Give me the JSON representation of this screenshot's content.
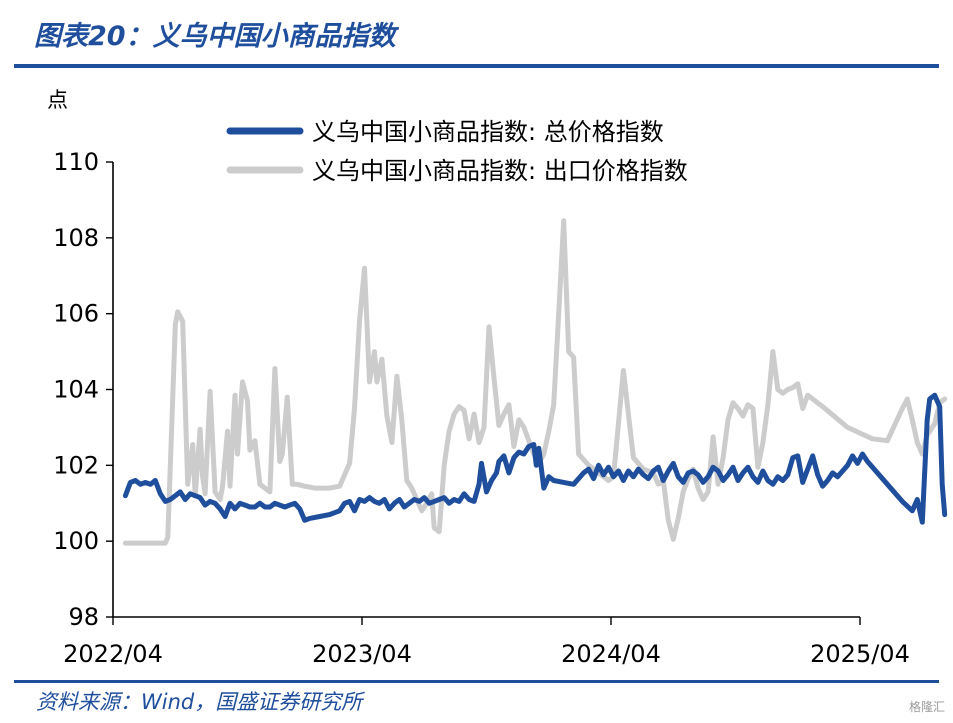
{
  "header": {
    "title": "图表20：义乌中国小商品指数"
  },
  "footer": {
    "source": "资料来源：Wind，国盛证券研究所",
    "watermark": "格隆汇"
  },
  "chart_data": {
    "type": "line",
    "ylabel": "点",
    "ylim": [
      98,
      110
    ],
    "yticks": [
      "98",
      "100",
      "102",
      "104",
      "106",
      "108",
      "110"
    ],
    "xlim": [
      "2022-04",
      "2025-04"
    ],
    "xticks": [
      "2022/04",
      "2023/04",
      "2024/04",
      "2025/04"
    ],
    "legend_position": "top",
    "grid": false,
    "series": [
      {
        "name": "义乌中国小商品指数: 总价格指数",
        "color": "#1f4e9c",
        "points": [
          [
            2022.3,
            101.2
          ],
          [
            2022.32,
            101.55
          ],
          [
            2022.34,
            101.6
          ],
          [
            2022.36,
            101.5
          ],
          [
            2022.38,
            101.55
          ],
          [
            2022.4,
            101.5
          ],
          [
            2022.42,
            101.6
          ],
          [
            2022.44,
            101.25
          ],
          [
            2022.46,
            101.05
          ],
          [
            2022.48,
            101.1
          ],
          [
            2022.5,
            101.2
          ],
          [
            2022.52,
            101.3
          ],
          [
            2022.54,
            101.1
          ],
          [
            2022.56,
            101.25
          ],
          [
            2022.58,
            101.2
          ],
          [
            2022.6,
            101.15
          ],
          [
            2022.62,
            100.95
          ],
          [
            2022.64,
            101.05
          ],
          [
            2022.66,
            101.0
          ],
          [
            2022.68,
            100.85
          ],
          [
            2022.7,
            100.65
          ],
          [
            2022.72,
            101.0
          ],
          [
            2022.74,
            100.85
          ],
          [
            2022.76,
            101.0
          ],
          [
            2022.78,
            100.95
          ],
          [
            2022.8,
            100.9
          ],
          [
            2022.82,
            100.9
          ],
          [
            2022.84,
            101.0
          ],
          [
            2022.86,
            100.9
          ],
          [
            2022.88,
            100.9
          ],
          [
            2022.9,
            101.0
          ],
          [
            2022.92,
            100.95
          ],
          [
            2022.94,
            100.9
          ],
          [
            2022.96,
            100.95
          ],
          [
            2022.98,
            101.0
          ],
          [
            2023.0,
            100.85
          ],
          [
            2023.02,
            100.55
          ],
          [
            2023.04,
            100.6
          ],
          [
            2023.08,
            100.65
          ],
          [
            2023.12,
            100.7
          ],
          [
            2023.16,
            100.8
          ],
          [
            2023.18,
            101.0
          ],
          [
            2023.2,
            101.05
          ],
          [
            2023.22,
            100.8
          ],
          [
            2023.24,
            101.1
          ],
          [
            2023.26,
            101.05
          ],
          [
            2023.28,
            101.15
          ],
          [
            2023.3,
            101.05
          ],
          [
            2023.32,
            101.0
          ],
          [
            2023.34,
            101.1
          ],
          [
            2023.36,
            100.85
          ],
          [
            2023.38,
            101.0
          ],
          [
            2023.4,
            101.1
          ],
          [
            2023.42,
            100.9
          ],
          [
            2023.44,
            101.0
          ],
          [
            2023.46,
            101.1
          ],
          [
            2023.48,
            101.05
          ],
          [
            2023.5,
            101.15
          ],
          [
            2023.52,
            101.0
          ],
          [
            2023.54,
            101.05
          ],
          [
            2023.56,
            101.1
          ],
          [
            2023.58,
            101.15
          ],
          [
            2023.6,
            101.0
          ],
          [
            2023.62,
            101.1
          ],
          [
            2023.64,
            101.05
          ],
          [
            2023.66,
            101.25
          ],
          [
            2023.68,
            101.1
          ],
          [
            2023.7,
            101.05
          ],
          [
            2023.72,
            101.5
          ],
          [
            2023.73,
            102.05
          ],
          [
            2023.75,
            101.3
          ],
          [
            2023.77,
            101.6
          ],
          [
            2023.79,
            101.8
          ],
          [
            2023.8,
            102.1
          ],
          [
            2023.82,
            102.25
          ],
          [
            2023.84,
            101.8
          ],
          [
            2023.86,
            102.2
          ],
          [
            2023.88,
            102.35
          ],
          [
            2023.9,
            102.3
          ],
          [
            2023.92,
            102.5
          ],
          [
            2023.94,
            102.55
          ],
          [
            2023.95,
            102.0
          ],
          [
            2023.96,
            102.45
          ],
          [
            2023.98,
            101.4
          ],
          [
            2024.0,
            101.7
          ],
          [
            2024.02,
            101.6
          ],
          [
            2024.06,
            101.55
          ],
          [
            2024.1,
            101.5
          ],
          [
            2024.12,
            101.65
          ],
          [
            2024.14,
            101.8
          ],
          [
            2024.16,
            101.9
          ],
          [
            2024.18,
            101.65
          ],
          [
            2024.2,
            102.0
          ],
          [
            2024.22,
            101.75
          ],
          [
            2024.24,
            101.95
          ],
          [
            2024.26,
            101.7
          ],
          [
            2024.28,
            101.85
          ],
          [
            2024.3,
            101.6
          ],
          [
            2024.32,
            101.85
          ],
          [
            2024.34,
            101.7
          ],
          [
            2024.36,
            101.9
          ],
          [
            2024.38,
            101.75
          ],
          [
            2024.4,
            101.65
          ],
          [
            2024.42,
            101.85
          ],
          [
            2024.44,
            101.95
          ],
          [
            2024.46,
            101.6
          ],
          [
            2024.48,
            101.85
          ],
          [
            2024.5,
            102.05
          ],
          [
            2024.52,
            101.7
          ],
          [
            2024.54,
            101.55
          ],
          [
            2024.56,
            101.8
          ],
          [
            2024.58,
            101.85
          ],
          [
            2024.6,
            101.75
          ],
          [
            2024.62,
            101.55
          ],
          [
            2024.64,
            101.7
          ],
          [
            2024.66,
            101.95
          ],
          [
            2024.68,
            101.85
          ],
          [
            2024.7,
            101.6
          ],
          [
            2024.72,
            101.75
          ],
          [
            2024.74,
            101.95
          ],
          [
            2024.76,
            101.6
          ],
          [
            2024.78,
            101.8
          ],
          [
            2024.8,
            101.95
          ],
          [
            2024.82,
            101.7
          ],
          [
            2024.84,
            101.55
          ],
          [
            2024.86,
            101.85
          ],
          [
            2024.88,
            101.6
          ],
          [
            2024.9,
            101.5
          ],
          [
            2024.92,
            101.7
          ],
          [
            2024.94,
            101.6
          ],
          [
            2024.96,
            101.75
          ],
          [
            2024.98,
            102.2
          ],
          [
            2025.0,
            102.25
          ],
          [
            2025.02,
            101.55
          ],
          [
            2025.04,
            101.9
          ],
          [
            2025.06,
            102.25
          ],
          [
            2025.08,
            101.75
          ],
          [
            2025.1,
            101.45
          ],
          [
            2025.12,
            101.6
          ],
          [
            2025.14,
            101.8
          ],
          [
            2025.16,
            101.7
          ],
          [
            2025.18,
            101.85
          ],
          [
            2025.2,
            102.0
          ],
          [
            2025.22,
            102.25
          ],
          [
            2025.24,
            102.05
          ],
          [
            2025.26,
            102.3
          ],
          [
            2025.28,
            102.1
          ],
          [
            2025.36,
            101.5
          ],
          [
            2025.42,
            101.05
          ],
          [
            2025.46,
            100.8
          ],
          [
            2025.48,
            101.1
          ],
          [
            2025.5,
            100.5
          ],
          [
            2025.52,
            103.2
          ],
          [
            2025.53,
            103.75
          ],
          [
            2025.55,
            103.85
          ],
          [
            2025.57,
            103.55
          ],
          [
            2025.58,
            101.5
          ],
          [
            2025.59,
            100.7
          ]
        ]
      },
      {
        "name": "义乌中国小商品指数: 出口价格指数",
        "color": "#cccccc",
        "points": [
          [
            2022.3,
            99.95
          ],
          [
            2022.46,
            99.95
          ],
          [
            2022.47,
            100.1
          ],
          [
            2022.5,
            105.7
          ],
          [
            2022.51,
            106.05
          ],
          [
            2022.53,
            105.8
          ],
          [
            2022.55,
            101.5
          ],
          [
            2022.57,
            102.55
          ],
          [
            2022.58,
            101.2
          ],
          [
            2022.6,
            102.95
          ],
          [
            2022.61,
            101.7
          ],
          [
            2022.62,
            101.25
          ],
          [
            2022.64,
            103.95
          ],
          [
            2022.66,
            101.3
          ],
          [
            2022.68,
            101.1
          ],
          [
            2022.69,
            101.45
          ],
          [
            2022.71,
            102.9
          ],
          [
            2022.72,
            101.45
          ],
          [
            2022.74,
            103.85
          ],
          [
            2022.75,
            102.3
          ],
          [
            2022.77,
            104.2
          ],
          [
            2022.79,
            103.7
          ],
          [
            2022.8,
            102.4
          ],
          [
            2022.82,
            102.65
          ],
          [
            2022.84,
            101.5
          ],
          [
            2022.86,
            101.4
          ],
          [
            2022.88,
            101.3
          ],
          [
            2022.9,
            104.55
          ],
          [
            2022.92,
            102.1
          ],
          [
            2022.93,
            102.3
          ],
          [
            2022.95,
            103.8
          ],
          [
            2022.97,
            101.5
          ],
          [
            2022.99,
            101.5
          ],
          [
            2023.02,
            101.45
          ],
          [
            2023.06,
            101.4
          ],
          [
            2023.12,
            101.4
          ],
          [
            2023.16,
            101.45
          ],
          [
            2023.2,
            102.05
          ],
          [
            2023.22,
            103.5
          ],
          [
            2023.24,
            105.8
          ],
          [
            2023.26,
            107.2
          ],
          [
            2023.28,
            104.2
          ],
          [
            2023.3,
            105.0
          ],
          [
            2023.31,
            104.2
          ],
          [
            2023.33,
            104.8
          ],
          [
            2023.35,
            103.3
          ],
          [
            2023.37,
            102.6
          ],
          [
            2023.39,
            104.35
          ],
          [
            2023.41,
            103.2
          ],
          [
            2023.43,
            101.6
          ],
          [
            2023.45,
            101.4
          ],
          [
            2023.47,
            101.1
          ],
          [
            2023.49,
            100.8
          ],
          [
            2023.51,
            101.0
          ],
          [
            2023.53,
            101.25
          ],
          [
            2023.54,
            100.35
          ],
          [
            2023.56,
            100.25
          ],
          [
            2023.58,
            102.0
          ],
          [
            2023.6,
            102.9
          ],
          [
            2023.62,
            103.35
          ],
          [
            2023.64,
            103.55
          ],
          [
            2023.66,
            103.45
          ],
          [
            2023.68,
            102.7
          ],
          [
            2023.7,
            103.35
          ],
          [
            2023.72,
            102.6
          ],
          [
            2023.74,
            103.0
          ],
          [
            2023.76,
            105.65
          ],
          [
            2023.78,
            104.3
          ],
          [
            2023.8,
            103.05
          ],
          [
            2023.82,
            103.35
          ],
          [
            2023.84,
            103.6
          ],
          [
            2023.86,
            102.5
          ],
          [
            2023.88,
            103.2
          ],
          [
            2023.9,
            103.0
          ],
          [
            2023.92,
            102.65
          ],
          [
            2023.94,
            102.3
          ],
          [
            2023.96,
            102.05
          ],
          [
            2023.98,
            102.3
          ],
          [
            2024.0,
            102.9
          ],
          [
            2024.02,
            103.6
          ],
          [
            2024.04,
            106.0
          ],
          [
            2024.06,
            108.45
          ],
          [
            2024.08,
            105.0
          ],
          [
            2024.1,
            104.85
          ],
          [
            2024.12,
            102.3
          ],
          [
            2024.16,
            102.0
          ],
          [
            2024.2,
            101.8
          ],
          [
            2024.24,
            101.6
          ],
          [
            2024.26,
            101.7
          ],
          [
            2024.3,
            104.5
          ],
          [
            2024.34,
            102.2
          ],
          [
            2024.38,
            101.9
          ],
          [
            2024.42,
            101.8
          ],
          [
            2024.44,
            101.5
          ],
          [
            2024.46,
            101.6
          ],
          [
            2024.48,
            100.55
          ],
          [
            2024.5,
            100.05
          ],
          [
            2024.52,
            100.6
          ],
          [
            2024.54,
            101.3
          ],
          [
            2024.56,
            101.65
          ],
          [
            2024.58,
            101.9
          ],
          [
            2024.6,
            101.4
          ],
          [
            2024.62,
            101.1
          ],
          [
            2024.64,
            101.3
          ],
          [
            2024.66,
            102.75
          ],
          [
            2024.68,
            101.5
          ],
          [
            2024.7,
            102.2
          ],
          [
            2024.72,
            103.2
          ],
          [
            2024.74,
            103.65
          ],
          [
            2024.76,
            103.5
          ],
          [
            2024.78,
            103.3
          ],
          [
            2024.8,
            103.6
          ],
          [
            2024.82,
            103.5
          ],
          [
            2024.84,
            101.95
          ],
          [
            2024.86,
            102.6
          ],
          [
            2024.88,
            103.6
          ],
          [
            2024.9,
            105.0
          ],
          [
            2024.92,
            104.0
          ],
          [
            2024.94,
            103.9
          ],
          [
            2024.96,
            104.0
          ],
          [
            2024.98,
            104.05
          ],
          [
            2025.0,
            104.15
          ],
          [
            2025.02,
            103.5
          ],
          [
            2025.04,
            103.85
          ],
          [
            2025.1,
            103.55
          ],
          [
            2025.2,
            103.0
          ],
          [
            2025.3,
            102.7
          ],
          [
            2025.36,
            102.65
          ],
          [
            2025.42,
            103.5
          ],
          [
            2025.44,
            103.75
          ],
          [
            2025.46,
            103.2
          ],
          [
            2025.48,
            102.6
          ],
          [
            2025.5,
            102.3
          ],
          [
            2025.52,
            102.8
          ],
          [
            2025.55,
            103.1
          ],
          [
            2025.57,
            103.65
          ],
          [
            2025.59,
            103.75
          ]
        ]
      }
    ]
  }
}
